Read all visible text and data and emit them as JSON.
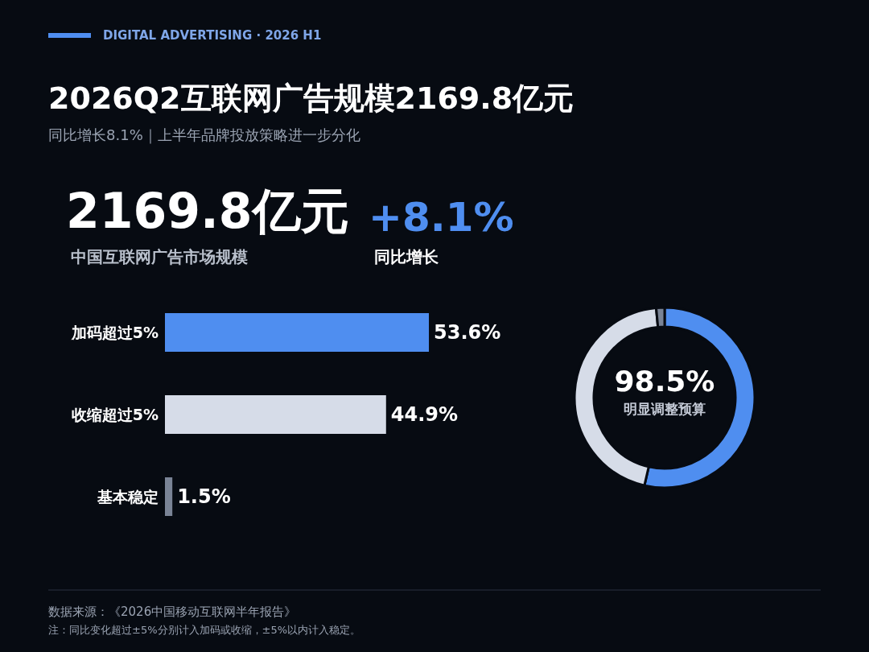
{
  "chart_data": [
    {
      "type": "bar",
      "orientation": "horizontal",
      "title": "2026Q2互联网广告规模2169.8亿元",
      "subtitle": "同比增长8.1%｜上半年品牌投放策略进一步分化",
      "annotations": [
        "DIGITAL ADVERTISING · 2026 H1",
        "2169.8亿元",
        "中国互联网广告市场规模",
        "+8.1%",
        "同比增长",
        "数据来源：《2026中国移动互联网半年报告》",
        "注：同比变化超过±5%分别计入加码或收缩，±5%以内计入稳定。"
      ],
      "categories": [
        "加码超过5%",
        "收缩超过5%",
        "基本稳定"
      ],
      "values": [
        53.6,
        44.9,
        1.5
      ],
      "colors": [
        "#4f8ef0",
        "#d6dce8",
        "#7a8496"
      ],
      "value_labels": [
        "53.6%",
        "44.9%",
        "1.5%"
      ]
    },
    {
      "type": "donut",
      "categories": [
        null,
        null,
        null
      ],
      "values": [
        53.6,
        44.9,
        1.5
      ],
      "colors": [
        "#4f8ef0",
        "#d6dce8",
        "#7a8496"
      ],
      "annotations": [
        "98.5%",
        "明显调整预算"
      ]
    }
  ]
}
